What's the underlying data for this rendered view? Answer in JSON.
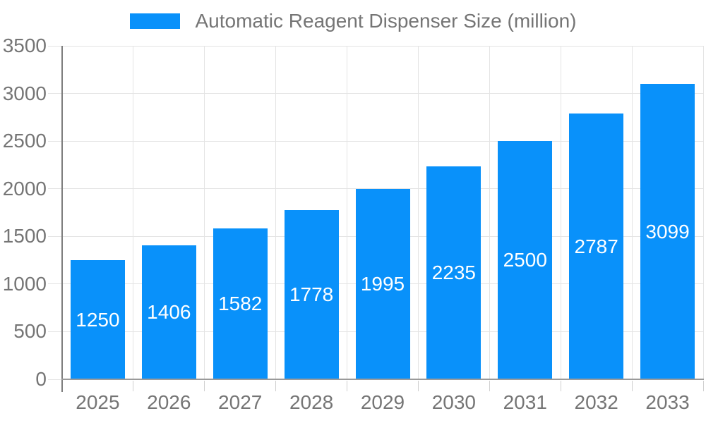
{
  "legend": {
    "label": "Automatic Reagent Dispenser Size (million)"
  },
  "colors": {
    "bar": "#0991fa",
    "grid": "#e4e4e4",
    "tick": "#cfcfcf",
    "axis_y": "#7d7d7d",
    "axis_x": "#9a9a9a",
    "tick_label": "#757575",
    "value_label": "#ffffff",
    "background": "#ffffff"
  },
  "chart_data": {
    "type": "bar",
    "title": "Automatic Reagent Dispenser Size (million)",
    "series": [
      {
        "name": "Automatic Reagent Dispenser Size (million)",
        "values": [
          1250,
          1406,
          1582,
          1778,
          1995,
          2235,
          2500,
          2787,
          3099
        ]
      }
    ],
    "categories": [
      "2025",
      "2026",
      "2027",
      "2028",
      "2029",
      "2030",
      "2031",
      "2032",
      "2033"
    ],
    "xlabel": "",
    "ylabel": "",
    "ylim": [
      0,
      3500
    ],
    "yticks": [
      0,
      500,
      1000,
      1500,
      2000,
      2500,
      3000,
      3500
    ],
    "grid": true,
    "legend_position": "top",
    "value_label_position": "inside-center"
  }
}
